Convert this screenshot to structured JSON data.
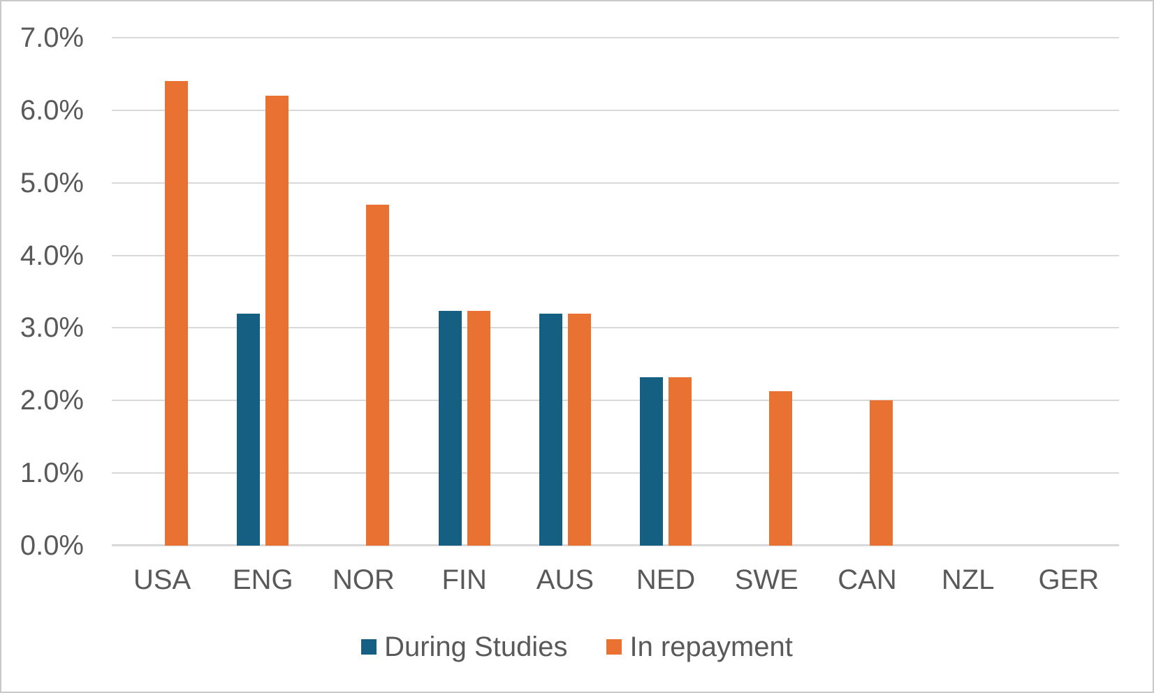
{
  "window": {
    "background": "#FFFFFF",
    "border_color": "#C9C9C9"
  },
  "chart_data": {
    "type": "bar",
    "title": "",
    "xlabel": "",
    "ylabel": "",
    "categories": [
      "USA",
      "ENG",
      "NOR",
      "FIN",
      "AUS",
      "NED",
      "SWE",
      "CAN",
      "NZL",
      "GER"
    ],
    "series": [
      {
        "name": "During Studies",
        "color": "#156082",
        "values": [
          0,
          3.2,
          0,
          3.24,
          3.2,
          2.32,
          0,
          0,
          0,
          0
        ]
      },
      {
        "name": "In repayment",
        "color": "#E97132",
        "values": [
          6.4,
          6.2,
          4.7,
          3.24,
          3.2,
          2.32,
          2.13,
          2.0,
          0,
          0
        ]
      }
    ],
    "ylim": [
      0,
      7
    ],
    "ytick_step": 1,
    "ytick_labels": [
      "0.0%",
      "1.0%",
      "2.0%",
      "3.0%",
      "4.0%",
      "5.0%",
      "6.0%",
      "7.0%"
    ],
    "grid": true,
    "legend_position": "bottom",
    "axis_text_color": "#595959",
    "gridline_color": "#D9D9D9"
  }
}
